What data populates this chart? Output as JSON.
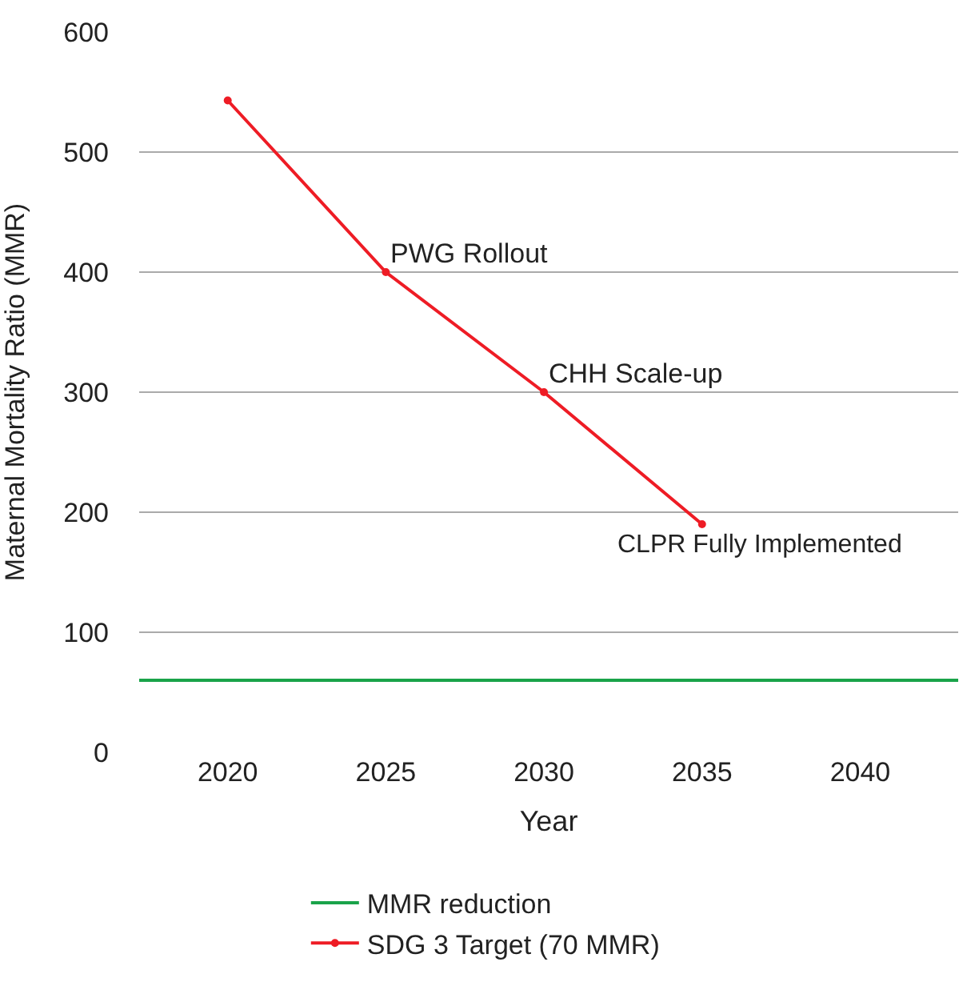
{
  "chart_data": {
    "type": "line",
    "xlabel": "Year",
    "ylabel": "Maternal Mortality Ratio (MMR)",
    "series": [
      {
        "name": "MMR reduction",
        "color": "#1aa34a",
        "x": [
          2017.2,
          2043.1
        ],
        "values": [
          60,
          60
        ],
        "marker": "none"
      },
      {
        "name": "SDG 3 Target (70 MMR)",
        "color": "#ee1c25",
        "x": [
          2020,
          2025,
          2030,
          2035
        ],
        "values": [
          543,
          400,
          300,
          190
        ],
        "marker": "circle"
      }
    ],
    "annotations": [
      {
        "text": "PWG Rollout",
        "x": 2025,
        "y": 400
      },
      {
        "text": "CHH Scale-up",
        "x": 2030,
        "y": 300
      },
      {
        "text": "CLPR Fully Implemented",
        "x": 2035,
        "y": 190
      }
    ],
    "xlim": [
      2017.2,
      2043.1
    ],
    "xticks": [
      2020,
      2025,
      2030,
      2035,
      2040
    ],
    "ylim": [
      0,
      600
    ],
    "yticks": [
      0,
      100,
      200,
      300,
      400,
      500,
      600
    ],
    "grid": "y",
    "legend": "bottom",
    "line_style": "solid"
  }
}
